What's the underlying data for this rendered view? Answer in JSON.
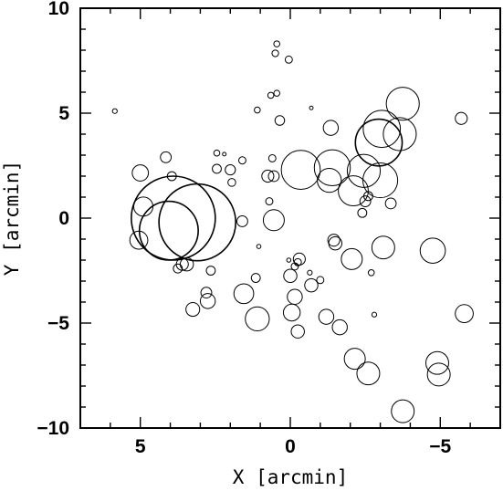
{
  "chart_data": {
    "type": "scatter",
    "marker": "open-circle",
    "xlabel": "X [arcmin]",
    "ylabel": "Y [arcmin]",
    "xlim": [
      7,
      -7
    ],
    "ylim": [
      -10,
      10
    ],
    "x_ticks": [
      5,
      0,
      -5
    ],
    "x_tick_labels": [
      "5",
      "0",
      "−5"
    ],
    "y_ticks": [
      10,
      5,
      0,
      -5,
      -10
    ],
    "y_tick_labels": [
      "10",
      "5",
      "0",
      "−5",
      "−10"
    ],
    "x_minor_step": 1,
    "y_minor_step": 1,
    "grid": false,
    "point_size_unit": "arcmin (radius)",
    "points": [
      {
        "x": 3.9,
        "y": 0.0,
        "r": 1.4
      },
      {
        "x": 3.1,
        "y": -0.2,
        "r": 1.28
      },
      {
        "x": 4.05,
        "y": -0.6,
        "r": 0.98
      },
      {
        "x": -0.35,
        "y": 2.3,
        "r": 0.65
      },
      {
        "x": -1.4,
        "y": 2.4,
        "r": 0.6
      },
      {
        "x": -1.3,
        "y": 1.8,
        "r": 0.4
      },
      {
        "x": -2.1,
        "y": 1.3,
        "r": 0.5
      },
      {
        "x": -2.45,
        "y": 2.25,
        "r": 0.55
      },
      {
        "x": -3.0,
        "y": 1.8,
        "r": 0.58
      },
      {
        "x": -2.95,
        "y": 3.6,
        "r": 0.78
      },
      {
        "x": -3.05,
        "y": 4.25,
        "r": 0.62
      },
      {
        "x": -3.65,
        "y": 4.0,
        "r": 0.55
      },
      {
        "x": -3.75,
        "y": 5.45,
        "r": 0.55
      },
      {
        "x": 5.05,
        "y": -1.05,
        "r": 0.3
      },
      {
        "x": 4.9,
        "y": 0.55,
        "r": 0.32
      },
      {
        "x": 5.0,
        "y": 2.15,
        "r": 0.27
      },
      {
        "x": 4.15,
        "y": 2.9,
        "r": 0.18
      },
      {
        "x": 3.95,
        "y": 2.0,
        "r": 0.15
      },
      {
        "x": 3.75,
        "y": -2.4,
        "r": 0.15
      },
      {
        "x": 3.6,
        "y": -2.2,
        "r": 0.2
      },
      {
        "x": 3.45,
        "y": -2.2,
        "r": 0.22
      },
      {
        "x": 3.25,
        "y": -4.35,
        "r": 0.23
      },
      {
        "x": 2.75,
        "y": -3.95,
        "r": 0.25
      },
      {
        "x": 2.8,
        "y": -3.55,
        "r": 0.18
      },
      {
        "x": 2.65,
        "y": -2.5,
        "r": 0.15
      },
      {
        "x": 2.45,
        "y": 2.35,
        "r": 0.15
      },
      {
        "x": 2.45,
        "y": 3.1,
        "r": 0.1
      },
      {
        "x": 2.2,
        "y": 3.05,
        "r": 0.06
      },
      {
        "x": 2.0,
        "y": 2.3,
        "r": 0.17
      },
      {
        "x": 1.95,
        "y": 1.7,
        "r": 0.13
      },
      {
        "x": 1.6,
        "y": 2.75,
        "r": 0.12
      },
      {
        "x": 1.6,
        "y": -0.15,
        "r": 0.18
      },
      {
        "x": 1.55,
        "y": -3.6,
        "r": 0.33
      },
      {
        "x": 1.15,
        "y": -2.85,
        "r": 0.15
      },
      {
        "x": 1.05,
        "y": -1.35,
        "r": 0.07
      },
      {
        "x": 1.1,
        "y": 5.15,
        "r": 0.1
      },
      {
        "x": 0.75,
        "y": 2.0,
        "r": 0.2
      },
      {
        "x": 0.65,
        "y": 5.85,
        "r": 0.1
      },
      {
        "x": 0.7,
        "y": 0.8,
        "r": 0.12
      },
      {
        "x": 0.6,
        "y": 2.85,
        "r": 0.12
      },
      {
        "x": 0.55,
        "y": 2.0,
        "r": 0.18
      },
      {
        "x": 0.55,
        "y": -0.1,
        "r": 0.35
      },
      {
        "x": 0.5,
        "y": 7.85,
        "r": 0.11
      },
      {
        "x": 0.45,
        "y": 8.3,
        "r": 0.1
      },
      {
        "x": 0.45,
        "y": 5.95,
        "r": 0.1
      },
      {
        "x": 0.35,
        "y": 4.65,
        "r": 0.16
      },
      {
        "x": 0.05,
        "y": 7.55,
        "r": 0.12
      },
      {
        "x": 0.05,
        "y": -2.0,
        "r": 0.07
      },
      {
        "x": 0.0,
        "y": -2.75,
        "r": 0.22
      },
      {
        "x": -0.05,
        "y": -4.5,
        "r": 0.28
      },
      {
        "x": -0.15,
        "y": -2.3,
        "r": 0.12
      },
      {
        "x": -0.15,
        "y": -3.75,
        "r": 0.25
      },
      {
        "x": -0.25,
        "y": -2.1,
        "r": 0.12
      },
      {
        "x": -0.25,
        "y": -5.4,
        "r": 0.22
      },
      {
        "x": -0.3,
        "y": -1.95,
        "r": 0.2
      },
      {
        "x": 1.1,
        "y": -4.8,
        "r": 0.4
      },
      {
        "x": -0.65,
        "y": -2.6,
        "r": 0.08
      },
      {
        "x": -0.7,
        "y": 5.25,
        "r": 0.06
      },
      {
        "x": -0.7,
        "y": -3.2,
        "r": 0.22
      },
      {
        "x": -1.0,
        "y": -2.95,
        "r": 0.12
      },
      {
        "x": -1.2,
        "y": -4.7,
        "r": 0.25
      },
      {
        "x": -1.35,
        "y": 4.3,
        "r": 0.25
      },
      {
        "x": -1.45,
        "y": -1.05,
        "r": 0.2
      },
      {
        "x": -1.5,
        "y": -1.2,
        "r": 0.22
      },
      {
        "x": -1.65,
        "y": -5.2,
        "r": 0.25
      },
      {
        "x": -2.05,
        "y": -1.95,
        "r": 0.35
      },
      {
        "x": -2.15,
        "y": -6.7,
        "r": 0.35
      },
      {
        "x": -2.6,
        "y": -7.4,
        "r": 0.38
      },
      {
        "x": -2.7,
        "y": -2.6,
        "r": 0.1
      },
      {
        "x": -2.8,
        "y": -4.6,
        "r": 0.08
      },
      {
        "x": -2.4,
        "y": 0.25,
        "r": 0.15
      },
      {
        "x": -2.5,
        "y": 0.8,
        "r": 0.18
      },
      {
        "x": -2.6,
        "y": 1.05,
        "r": 0.15
      },
      {
        "x": -3.35,
        "y": 0.7,
        "r": 0.18
      },
      {
        "x": -3.1,
        "y": -1.4,
        "r": 0.38
      },
      {
        "x": -3.75,
        "y": -9.2,
        "r": 0.38
      },
      {
        "x": -4.75,
        "y": -1.55,
        "r": 0.42
      },
      {
        "x": -4.9,
        "y": -6.9,
        "r": 0.38
      },
      {
        "x": -4.95,
        "y": -7.45,
        "r": 0.38
      },
      {
        "x": -5.7,
        "y": 4.75,
        "r": 0.2
      },
      {
        "x": -5.8,
        "y": -4.55,
        "r": 0.3
      },
      {
        "x": 5.85,
        "y": 5.1,
        "r": 0.08
      }
    ]
  }
}
